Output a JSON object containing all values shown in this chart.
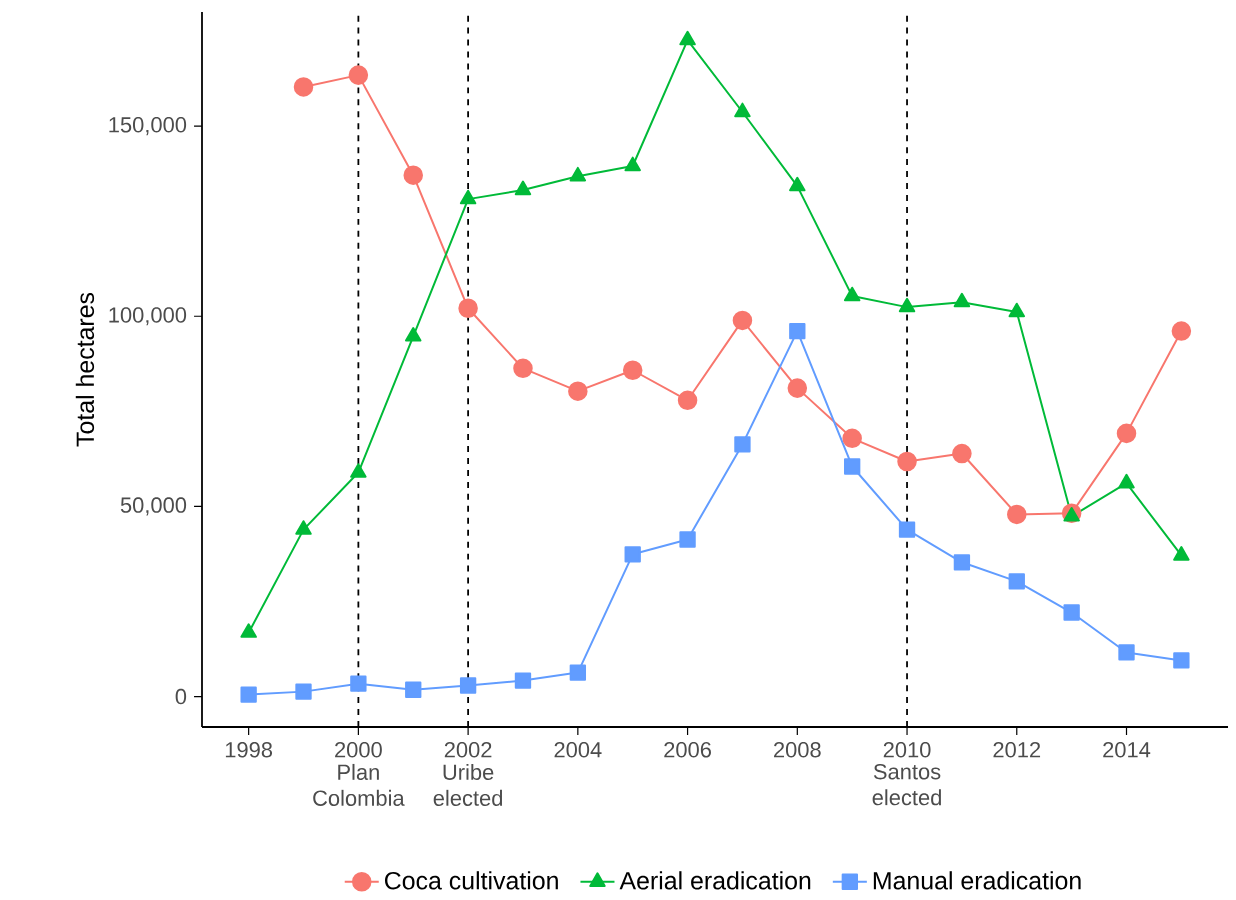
{
  "chart_data": {
    "type": "line",
    "ylabel": "Total hectares",
    "x": [
      1998,
      1999,
      2000,
      2001,
      2002,
      2003,
      2004,
      2005,
      2006,
      2007,
      2008,
      2009,
      2010,
      2011,
      2012,
      2013,
      2014,
      2015
    ],
    "series": [
      {
        "name": "Coca cultivation",
        "color": "#f8766d",
        "marker": "circle",
        "values": [
          null,
          160300,
          163400,
          137100,
          102100,
          86300,
          80300,
          85800,
          77900,
          98900,
          81100,
          67900,
          61800,
          63900,
          47900,
          48200,
          69200,
          96100
        ]
      },
      {
        "name": "Aerial eradication",
        "color": "#00ba38",
        "marker": "triangle",
        "values": [
          16800,
          43900,
          58900,
          94700,
          130800,
          133200,
          136800,
          139500,
          172600,
          153700,
          134200,
          105300,
          102400,
          103700,
          101100,
          47400,
          56100,
          37100
        ]
      },
      {
        "name": "Manual eradication",
        "color": "#619cff",
        "marker": "square",
        "values": [
          500,
          1300,
          3400,
          1800,
          2900,
          4200,
          6300,
          37400,
          41300,
          66300,
          96100,
          60500,
          43900,
          35300,
          30300,
          22100,
          11600,
          9500
        ]
      }
    ],
    "xlim": [
      1997.15,
      2015.85
    ],
    "ylim": [
      -8000,
      180000
    ],
    "xticks": [
      1998,
      2000,
      2002,
      2004,
      2006,
      2008,
      2010,
      2012,
      2014
    ],
    "yticks": [
      {
        "value": 0,
        "label": "0"
      },
      {
        "value": 50000,
        "label": "50,000"
      },
      {
        "value": 100000,
        "label": "100,000"
      },
      {
        "value": 150000,
        "label": "150,000"
      }
    ],
    "ref_lines": [
      {
        "axis": "x",
        "value": 2000,
        "label": "Plan Colombia",
        "color": "#000000",
        "line_style": "dashed"
      },
      {
        "axis": "x",
        "value": 2002,
        "label": "Uribe elected",
        "color": "#000000",
        "line_style": "dashed"
      },
      {
        "axis": "x",
        "value": 2010,
        "label": "Santos elected",
        "color": "#000000",
        "line_style": "dashed"
      }
    ],
    "grid": false,
    "legend": "bottom",
    "line_style": "solid"
  }
}
